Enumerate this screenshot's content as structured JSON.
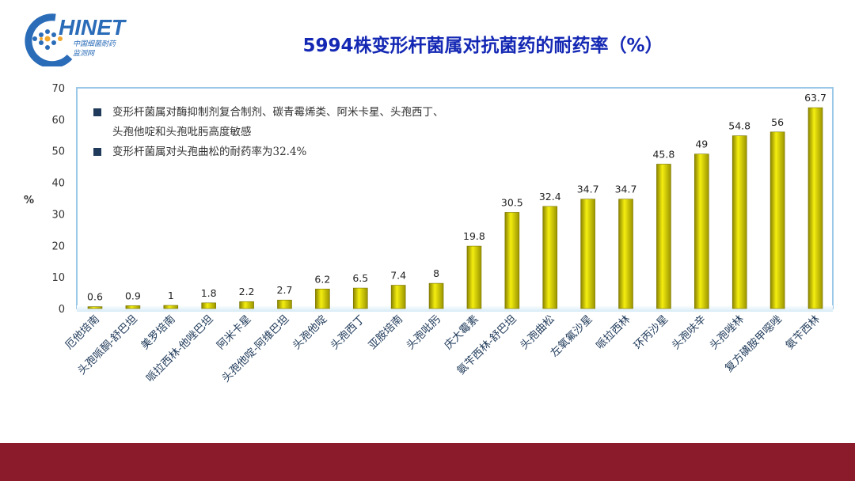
{
  "logo": {
    "text": "HINET",
    "sub1": "中国细菌耐药",
    "sub2": "监测网"
  },
  "title": "5994株变形杆菌属对抗菌药的耐药率（%）",
  "notes": [
    "变形杆菌属对酶抑制剂复合制剂、碳青霉烯类、阿米卡星、头孢西丁、",
    "头孢他啶和头孢吡肟高度敏感",
    "变形杆菌属对头孢曲松的耐药率为32.4%"
  ],
  "colors": {
    "bar": "#e6e000",
    "title": "#1428b4",
    "footer": "#8b1a2b",
    "frame": "#9cc8e8"
  },
  "chart_data": {
    "type": "bar",
    "title": "5994株变形杆菌属对抗菌药的耐药率（%）",
    "ylabel": "%",
    "xlabel": "",
    "ylim": [
      0,
      70
    ],
    "yticks": [
      0,
      10,
      20,
      30,
      40,
      50,
      60,
      70
    ],
    "categories": [
      "厄他培南",
      "头孢哌酮-舒巴坦",
      "美罗培南",
      "哌拉西林-他唑巴坦",
      "阿米卡星",
      "头孢他啶-阿维巴坦",
      "头孢他啶",
      "头孢西丁",
      "亚胺培南",
      "头孢吡肟",
      "庆大霉素",
      "氨苄西林-舒巴坦",
      "头孢曲松",
      "左氧氟沙星",
      "哌拉西林",
      "环丙沙星",
      "头孢呋辛",
      "头孢唑林",
      "复方磺胺甲噁唑",
      "氨苄西林"
    ],
    "values": [
      0.6,
      0.9,
      1,
      1.8,
      2.2,
      2.7,
      6.2,
      6.5,
      7.4,
      8,
      19.8,
      30.5,
      32.4,
      34.7,
      34.7,
      45.8,
      49,
      54.8,
      56,
      63.7
    ],
    "data_labels": [
      "0.6",
      "0.9",
      "1",
      "1.8",
      "2.2",
      "2.7",
      "6.2",
      "6.5",
      "7.4",
      "8",
      "19.8",
      "30.5",
      "32.4",
      "34.7",
      "34.7",
      "45.8",
      "49",
      "54.8",
      "56",
      "63.7"
    ],
    "grid": false,
    "legend": "none"
  }
}
